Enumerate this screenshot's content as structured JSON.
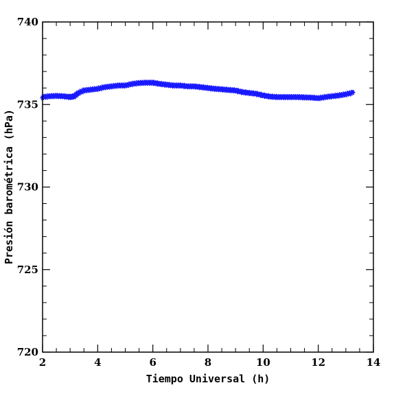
{
  "chart_data": {
    "type": "scatter",
    "title": "",
    "xlabel": "Tiempo Universal (h)",
    "ylabel": "Presión barométrica (hPa)",
    "xlim": [
      2,
      14
    ],
    "ylim": [
      720,
      740
    ],
    "x_ticks": [
      2,
      4,
      6,
      8,
      10,
      12,
      14
    ],
    "y_ticks": [
      720,
      725,
      730,
      735,
      740
    ],
    "x_minor_step": 0.5,
    "y_minor_step": 1,
    "grid": false,
    "legend": "none",
    "marker": "star",
    "series_color": "#1a1aff",
    "series": [
      {
        "x": [
          2.0,
          2.25,
          2.5,
          2.75,
          3.0,
          3.15,
          3.3,
          3.5,
          3.75,
          4.0,
          4.25,
          4.5,
          4.75,
          5.0,
          5.25,
          5.5,
          5.75,
          6.0,
          6.25,
          6.5,
          6.75,
          7.0,
          7.25,
          7.5,
          7.75,
          8.0,
          8.25,
          8.5,
          8.75,
          9.0,
          9.25,
          9.5,
          9.75,
          10.0,
          10.25,
          10.5,
          10.75,
          11.0,
          11.25,
          11.5,
          11.75,
          12.0,
          12.25,
          12.5,
          12.75,
          13.0,
          13.25
        ],
        "y": [
          735.45,
          735.5,
          735.52,
          735.5,
          735.45,
          735.5,
          735.7,
          735.85,
          735.9,
          735.95,
          736.05,
          736.1,
          736.15,
          736.15,
          736.25,
          736.3,
          736.32,
          736.32,
          736.25,
          736.2,
          736.15,
          736.15,
          736.1,
          736.1,
          736.05,
          736.0,
          735.95,
          735.92,
          735.88,
          735.85,
          735.75,
          735.7,
          735.65,
          735.55,
          735.48,
          735.45,
          735.45,
          735.45,
          735.45,
          735.43,
          735.42,
          735.38,
          735.45,
          735.5,
          735.55,
          735.62,
          735.72
        ]
      }
    ]
  }
}
